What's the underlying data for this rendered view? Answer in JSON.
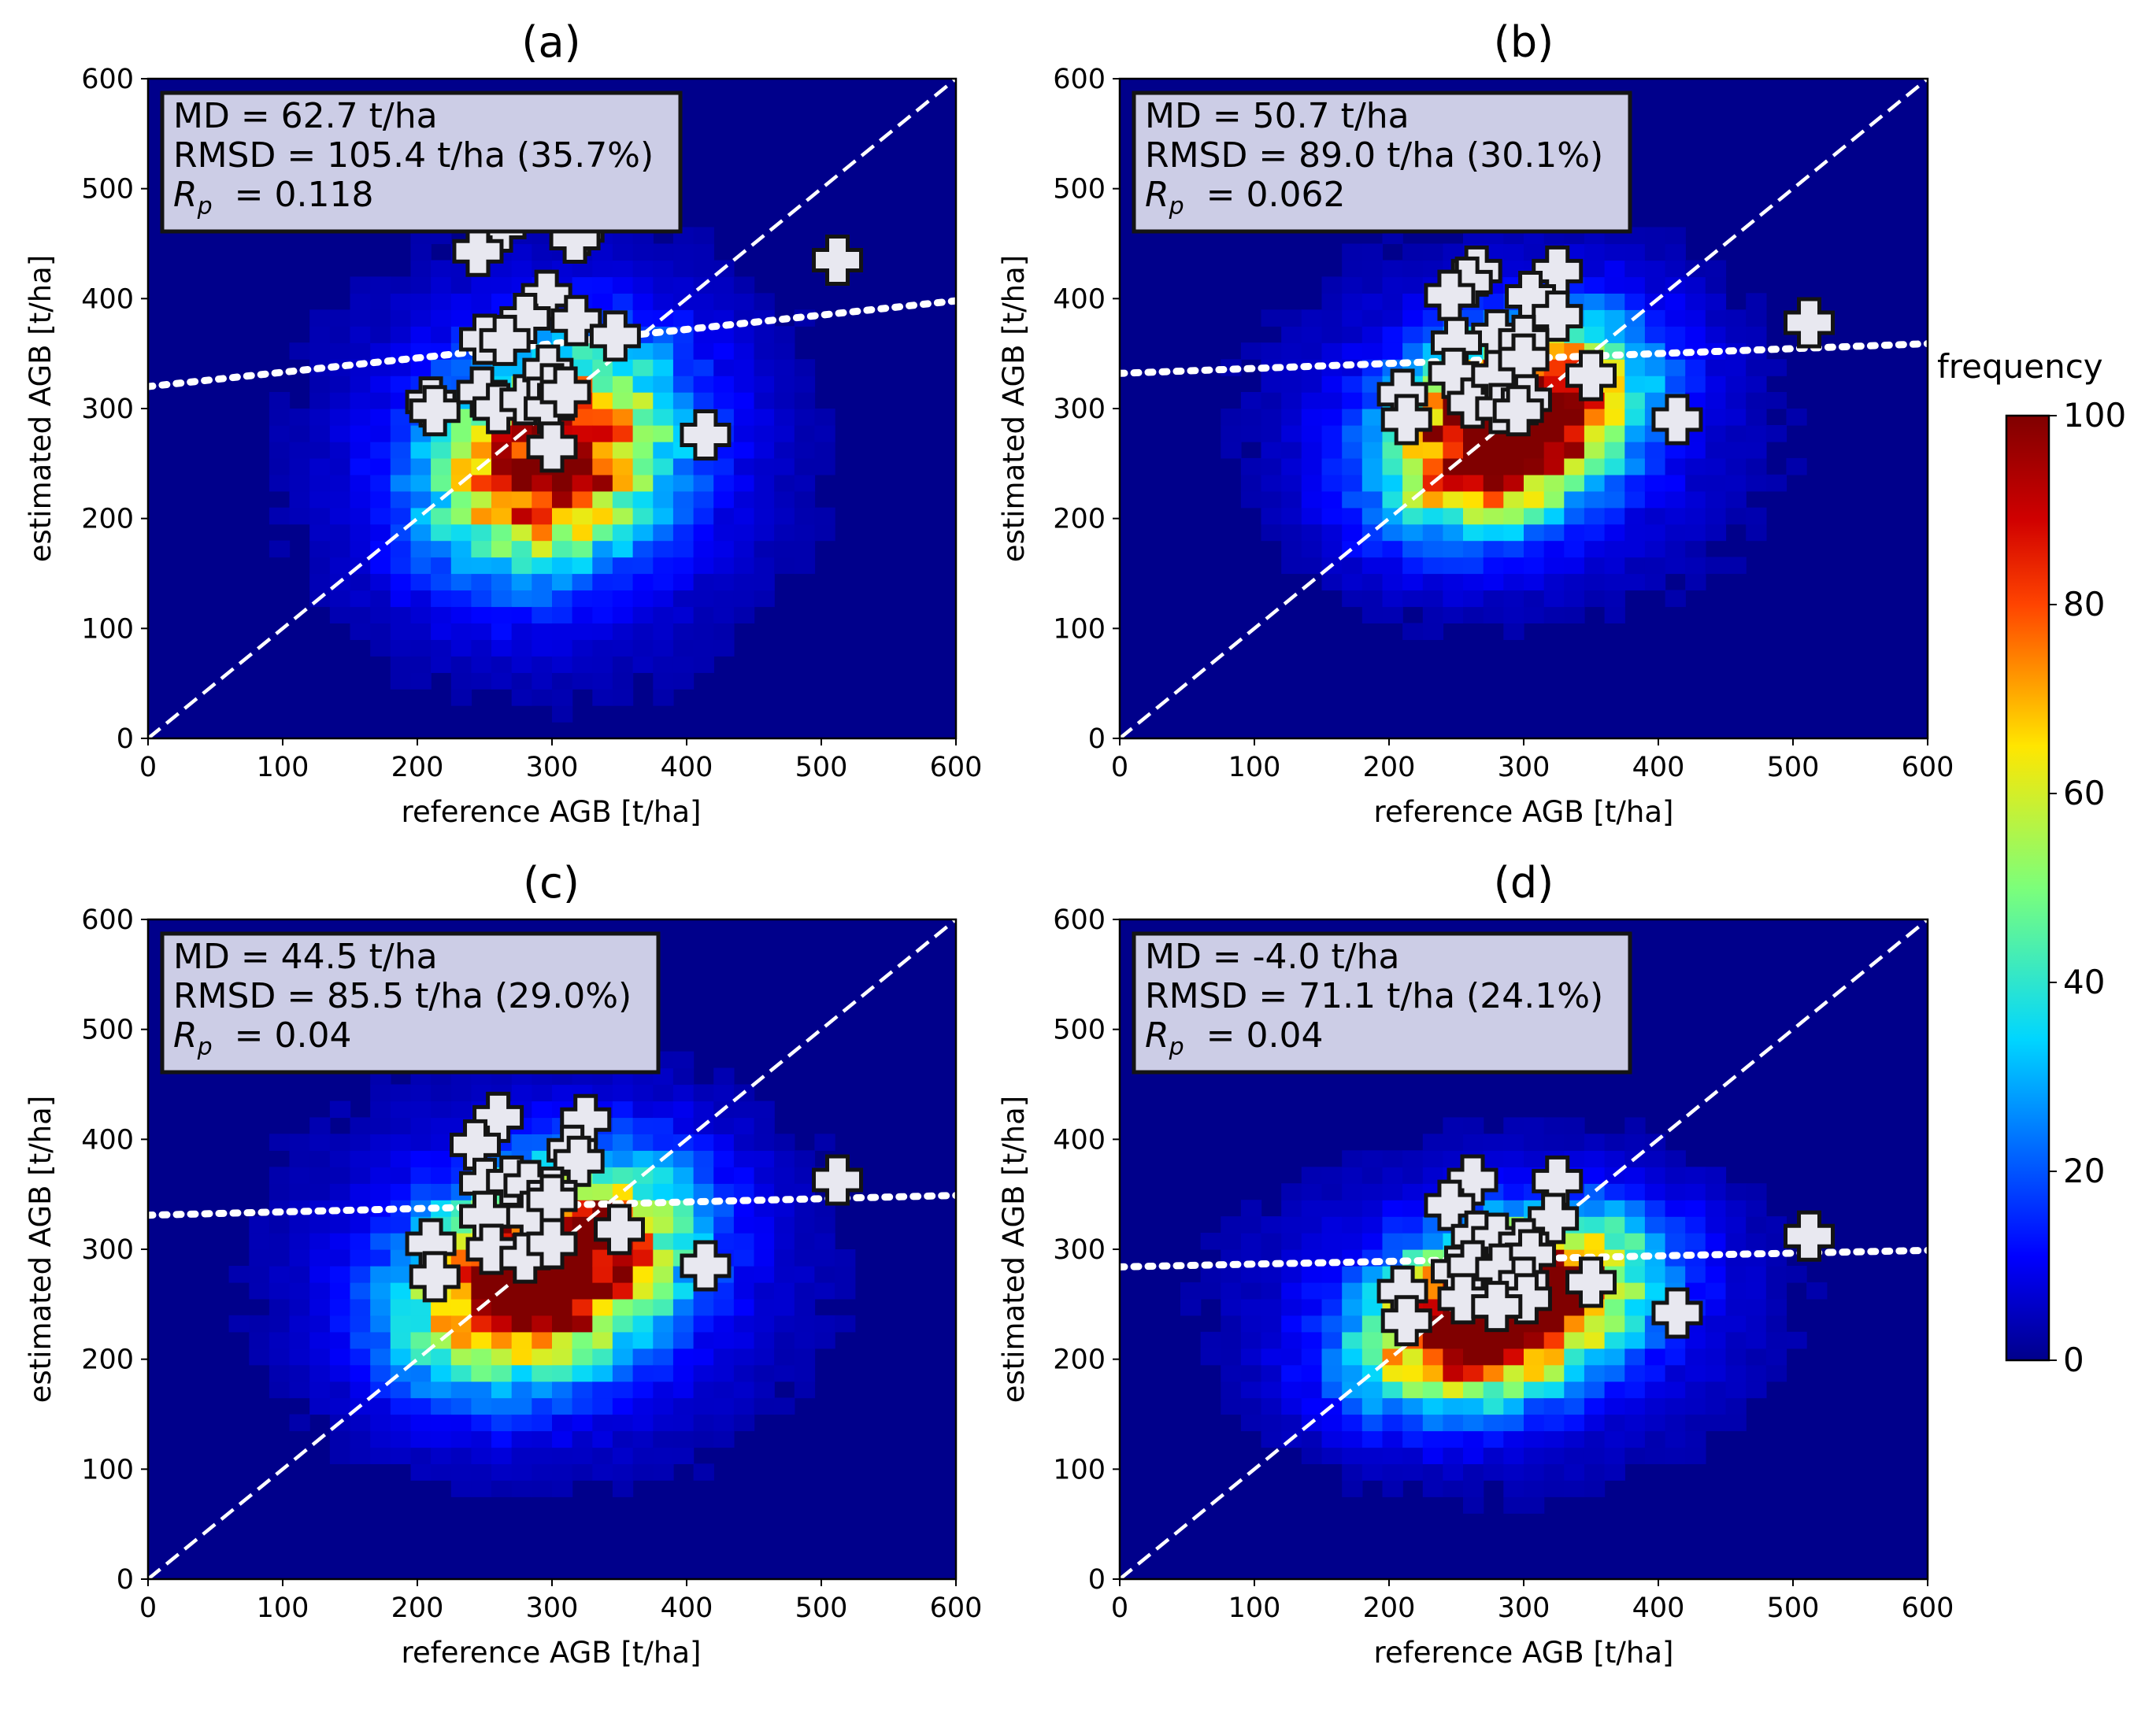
{
  "colorbar": {
    "title": "frequency",
    "min": 0,
    "max": 100,
    "ticks": [
      "0",
      "20",
      "40",
      "60",
      "80",
      "100"
    ]
  },
  "colors": {
    "background": "#00008b",
    "line": "#ffffff",
    "frame": "#000000"
  },
  "chart_data": [
    {
      "type": "heatmap",
      "panel": "(a)",
      "xlabel": "reference AGB [t/ha]",
      "ylabel": "estimated AGB [t/ha]",
      "xlim": [
        0,
        600
      ],
      "ylim": [
        0,
        600
      ],
      "xticks": [
        "0",
        "100",
        "200",
        "300",
        "400",
        "500",
        "600"
      ],
      "yticks": [
        "0",
        "100",
        "200",
        "300",
        "400",
        "500",
        "600"
      ],
      "stats": {
        "md": "MD = 62.7 t/ha",
        "rmsd": "RMSD = 105.4 t/ha (35.7%)",
        "rp_label": "R",
        "rp_sub": "p",
        "rp_value": "= 0.118"
      },
      "density_center": [
        300,
        255
      ],
      "density_spread": [
        55,
        60
      ],
      "density_peak": 95,
      "density_tilt": 0.25,
      "fit_line": {
        "intercept": 320,
        "slope": 0.13
      },
      "one_to_one": true,
      "points": [
        [
          255,
          472
        ],
        [
          262,
          465
        ],
        [
          320,
          462
        ],
        [
          317,
          455
        ],
        [
          245,
          443
        ],
        [
          512,
          435
        ],
        [
          296,
          403
        ],
        [
          280,
          382
        ],
        [
          318,
          380
        ],
        [
          250,
          363
        ],
        [
          265,
          362
        ],
        [
          347,
          366
        ],
        [
          210,
          306
        ],
        [
          213,
          298
        ],
        [
          248,
          315
        ],
        [
          260,
          300
        ],
        [
          280,
          308
        ],
        [
          297,
          335
        ],
        [
          300,
          318
        ],
        [
          298,
          300
        ],
        [
          310,
          315
        ],
        [
          300,
          265
        ],
        [
          414,
          276
        ]
      ]
    },
    {
      "type": "heatmap",
      "panel": "(b)",
      "xlabel": "reference AGB [t/ha]",
      "ylabel": "estimated AGB [t/ha]",
      "xlim": [
        0,
        600
      ],
      "ylim": [
        0,
        600
      ],
      "xticks": [
        "0",
        "100",
        "200",
        "300",
        "400",
        "500",
        "600"
      ],
      "yticks": [
        "0",
        "100",
        "200",
        "300",
        "400",
        "500",
        "600"
      ],
      "stats": {
        "md": "MD = 50.7 t/ha",
        "rmsd": "RMSD = 89.0 t/ha (30.1%)",
        "rp_label": "R",
        "rp_sub": "p",
        "rp_value": "= 0.062"
      },
      "density_center": [
        290,
        285
      ],
      "density_spread": [
        55,
        50
      ],
      "density_peak": 130,
      "density_tilt": 0.35,
      "fit_line": {
        "intercept": 332,
        "slope": 0.045
      },
      "one_to_one": true,
      "points": [
        [
          265,
          425
        ],
        [
          258,
          415
        ],
        [
          245,
          403
        ],
        [
          325,
          425
        ],
        [
          305,
          402
        ],
        [
          325,
          384
        ],
        [
          280,
          367
        ],
        [
          300,
          362
        ],
        [
          250,
          360
        ],
        [
          512,
          378
        ],
        [
          210,
          313
        ],
        [
          213,
          290
        ],
        [
          248,
          332
        ],
        [
          262,
          305
        ],
        [
          280,
          330
        ],
        [
          283,
          300
        ],
        [
          300,
          345
        ],
        [
          302,
          308
        ],
        [
          296,
          298
        ],
        [
          350,
          330
        ],
        [
          414,
          290
        ]
      ]
    },
    {
      "type": "heatmap",
      "panel": "(c)",
      "xlabel": "reference AGB [t/ha]",
      "ylabel": "estimated AGB [t/ha]",
      "xlim": [
        0,
        600
      ],
      "ylim": [
        0,
        600
      ],
      "xticks": [
        "0",
        "100",
        "200",
        "300",
        "400",
        "500",
        "600"
      ],
      "yticks": [
        "0",
        "100",
        "200",
        "300",
        "400",
        "500",
        "600"
      ],
      "stats": {
        "md": "MD = 44.5 t/ha",
        "rmsd": "RMSD = 85.5 t/ha (29.0%)",
        "rp_label": "R",
        "rp_sub": "p",
        "rp_value": "= 0.04"
      },
      "density_center": [
        295,
        280
      ],
      "density_spread": [
        60,
        55
      ],
      "density_peak": 125,
      "density_tilt": 0.3,
      "fit_line": {
        "intercept": 331,
        "slope": 0.03
      },
      "one_to_one": true,
      "points": [
        [
          260,
          420
        ],
        [
          325,
          418
        ],
        [
          243,
          395
        ],
        [
          315,
          390
        ],
        [
          320,
          380
        ],
        [
          250,
          360
        ],
        [
          270,
          362
        ],
        [
          283,
          358
        ],
        [
          300,
          352
        ],
        [
          512,
          363
        ],
        [
          250,
          330
        ],
        [
          285,
          330
        ],
        [
          300,
          345
        ],
        [
          210,
          305
        ],
        [
          213,
          275
        ],
        [
          255,
          300
        ],
        [
          280,
          292
        ],
        [
          300,
          305
        ],
        [
          350,
          318
        ],
        [
          414,
          285
        ]
      ]
    },
    {
      "type": "heatmap",
      "panel": "(d)",
      "xlabel": "reference AGB [t/ha]",
      "ylabel": "estimated AGB [t/ha]",
      "xlim": [
        0,
        600
      ],
      "ylim": [
        0,
        600
      ],
      "xticks": [
        "0",
        "100",
        "200",
        "300",
        "400",
        "500",
        "600"
      ],
      "yticks": [
        "0",
        "100",
        "200",
        "300",
        "400",
        "500",
        "600"
      ],
      "stats": {
        "md": "MD = -4.0 t/ha",
        "rmsd": "RMSD = 71.1 t/ha (24.1%)",
        "rp_label": "R",
        "rp_sub": "p",
        "rp_value": "= 0.04"
      },
      "density_center": [
        285,
        245
      ],
      "density_spread": [
        60,
        45
      ],
      "density_peak": 140,
      "density_tilt": 0.3,
      "fit_line": {
        "intercept": 284,
        "slope": 0.025
      },
      "one_to_one": true,
      "points": [
        [
          262,
          363
        ],
        [
          325,
          362
        ],
        [
          245,
          340
        ],
        [
          322,
          328
        ],
        [
          265,
          312
        ],
        [
          280,
          310
        ],
        [
          300,
          305
        ],
        [
          305,
          295
        ],
        [
          512,
          312
        ],
        [
          250,
          280
        ],
        [
          262,
          285
        ],
        [
          283,
          282
        ],
        [
          300,
          270
        ],
        [
          302,
          255
        ],
        [
          210,
          262
        ],
        [
          213,
          235
        ],
        [
          255,
          255
        ],
        [
          280,
          248
        ],
        [
          350,
          270
        ],
        [
          414,
          242
        ]
      ]
    }
  ]
}
